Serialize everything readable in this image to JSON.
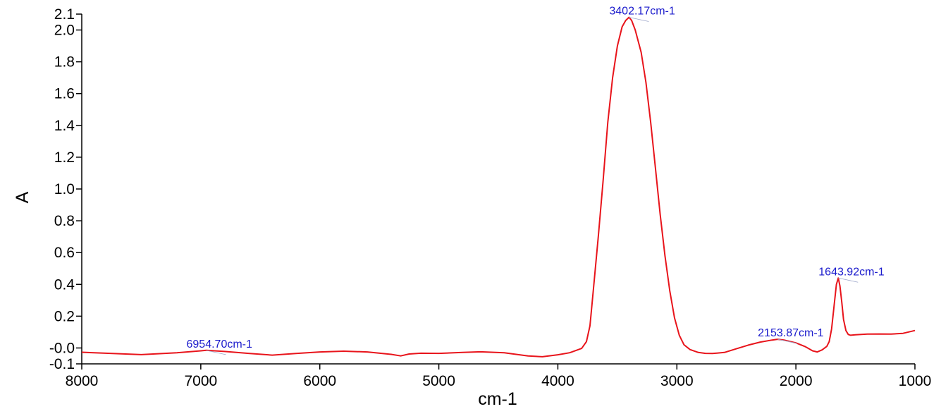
{
  "chart_data": {
    "type": "line",
    "title": "",
    "xlabel": "cm-1",
    "ylabel": "A",
    "xlim": [
      8000,
      1000
    ],
    "ylim": [
      -0.1,
      2.1
    ],
    "x_ticks": [
      "8000",
      "7000",
      "6000",
      "5000",
      "4000",
      "3000",
      "2000",
      "1000"
    ],
    "y_ticks": [
      {
        "value": 2.1,
        "label": "2.1"
      },
      {
        "value": 2.0,
        "label": "2.0"
      },
      {
        "value": 1.8,
        "label": "1.8"
      },
      {
        "value": 1.6,
        "label": "1.6"
      },
      {
        "value": 1.4,
        "label": "1.4"
      },
      {
        "value": 1.2,
        "label": "1.2"
      },
      {
        "value": 1.0,
        "label": "1.0"
      },
      {
        "value": 0.8,
        "label": "0.8"
      },
      {
        "value": 0.6,
        "label": "0.6"
      },
      {
        "value": 0.4,
        "label": "0.4"
      },
      {
        "value": 0.2,
        "label": "0.2"
      },
      {
        "value": 0.0,
        "label": "-0.0"
      },
      {
        "value": -0.1,
        "label": "-0.1"
      }
    ],
    "grid": false,
    "series": [
      {
        "color": "#e8141b",
        "points": [
          [
            8000,
            -0.027
          ],
          [
            7800,
            -0.033
          ],
          [
            7500,
            -0.042
          ],
          [
            7200,
            -0.03
          ],
          [
            7000,
            -0.018
          ],
          [
            6955,
            -0.015
          ],
          [
            6800,
            -0.022
          ],
          [
            6600,
            -0.034
          ],
          [
            6400,
            -0.045
          ],
          [
            6200,
            -0.035
          ],
          [
            6000,
            -0.025
          ],
          [
            5800,
            -0.02
          ],
          [
            5600,
            -0.025
          ],
          [
            5400,
            -0.04
          ],
          [
            5320,
            -0.05
          ],
          [
            5250,
            -0.038
          ],
          [
            5150,
            -0.033
          ],
          [
            5000,
            -0.034
          ],
          [
            4800,
            -0.028
          ],
          [
            4650,
            -0.024
          ],
          [
            4450,
            -0.03
          ],
          [
            4250,
            -0.05
          ],
          [
            4130,
            -0.055
          ],
          [
            4000,
            -0.043
          ],
          [
            3900,
            -0.03
          ],
          [
            3800,
            -0.003
          ],
          [
            3760,
            0.04
          ],
          [
            3730,
            0.14
          ],
          [
            3700,
            0.38
          ],
          [
            3660,
            0.7
          ],
          [
            3620,
            1.05
          ],
          [
            3580,
            1.42
          ],
          [
            3540,
            1.7
          ],
          [
            3500,
            1.9
          ],
          [
            3460,
            2.02
          ],
          [
            3430,
            2.06
          ],
          [
            3402,
            2.08
          ],
          [
            3380,
            2.06
          ],
          [
            3350,
            2.0
          ],
          [
            3300,
            1.86
          ],
          [
            3260,
            1.67
          ],
          [
            3220,
            1.42
          ],
          [
            3180,
            1.13
          ],
          [
            3140,
            0.84
          ],
          [
            3100,
            0.58
          ],
          [
            3060,
            0.36
          ],
          [
            3020,
            0.19
          ],
          [
            2980,
            0.08
          ],
          [
            2940,
            0.02
          ],
          [
            2890,
            -0.01
          ],
          [
            2820,
            -0.028
          ],
          [
            2760,
            -0.034
          ],
          [
            2700,
            -0.035
          ],
          [
            2600,
            -0.028
          ],
          [
            2500,
            -0.005
          ],
          [
            2400,
            0.018
          ],
          [
            2300,
            0.037
          ],
          [
            2200,
            0.05
          ],
          [
            2154,
            0.055
          ],
          [
            2100,
            0.05
          ],
          [
            2000,
            0.032
          ],
          [
            1920,
            0.008
          ],
          [
            1860,
            -0.018
          ],
          [
            1820,
            -0.025
          ],
          [
            1780,
            -0.012
          ],
          [
            1740,
            0.01
          ],
          [
            1720,
            0.04
          ],
          [
            1700,
            0.12
          ],
          [
            1680,
            0.26
          ],
          [
            1660,
            0.4
          ],
          [
            1644,
            0.44
          ],
          [
            1630,
            0.39
          ],
          [
            1615,
            0.29
          ],
          [
            1600,
            0.18
          ],
          [
            1580,
            0.11
          ],
          [
            1560,
            0.085
          ],
          [
            1540,
            0.08
          ],
          [
            1500,
            0.083
          ],
          [
            1400,
            0.087
          ],
          [
            1300,
            0.088
          ],
          [
            1200,
            0.087
          ],
          [
            1100,
            0.092
          ],
          [
            1000,
            0.11
          ]
        ]
      }
    ],
    "annotations": [
      {
        "x": 6954.7,
        "y": -0.015,
        "label": "6954.70cm-1",
        "color": "#1a1acc"
      },
      {
        "x": 3402.17,
        "y": 2.08,
        "label": "3402.17cm-1",
        "color": "#1a1acc"
      },
      {
        "x": 2153.87,
        "y": 0.055,
        "label": "2153.87cm-1",
        "color": "#1a1acc"
      },
      {
        "x": 1643.92,
        "y": 0.44,
        "label": "1643.92cm-1",
        "color": "#1a1acc"
      }
    ]
  }
}
